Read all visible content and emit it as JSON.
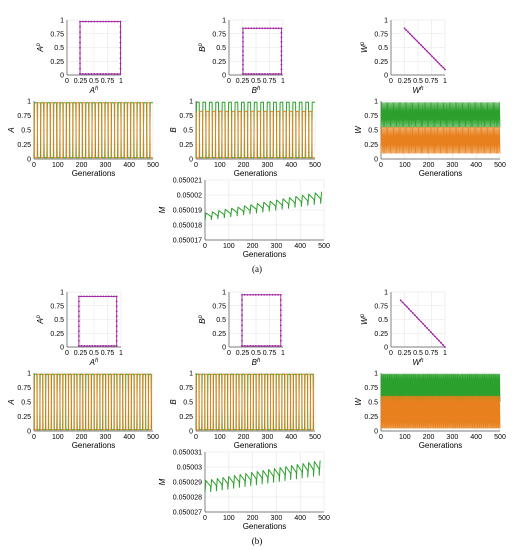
{
  "colors": {
    "green": "#2ca02c",
    "orange": "#e8811d",
    "purple": "#a020a0",
    "grid": "#e6e6e6",
    "axis": "#555555"
  },
  "panel_labels": [
    "(a)",
    "(b)"
  ],
  "chart_data": [
    {
      "id": "a-phase-A",
      "type": "scatter",
      "xlabel_main": "A",
      "xlabel_sup": "h",
      "ylabel_main": "A",
      "ylabel_sup": "p",
      "xlim": [
        0,
        1
      ],
      "ylim": [
        0,
        1
      ],
      "xticks": [
        "0",
        "0.25",
        "0.5",
        "0.75",
        "1"
      ],
      "yticks": [
        "0",
        "0.25",
        "0.5",
        "0.75",
        "1"
      ],
      "series": [
        {
          "color": "purple",
          "shape": "loop",
          "bounds": [
            0.24,
            0.99
          ],
          "low": 0.02,
          "high": 0.97
        }
      ]
    },
    {
      "id": "a-phase-B",
      "type": "scatter",
      "xlabel_main": "B",
      "xlabel_sup": "h",
      "ylabel_main": "B",
      "ylabel_sup": "p",
      "xlim": [
        0,
        1
      ],
      "ylim": [
        0,
        1
      ],
      "xticks": [
        "0",
        "0.25",
        "0.5",
        "0.75",
        "1"
      ],
      "yticks": [
        "0",
        "0.25",
        "0.5",
        "0.75",
        "1"
      ],
      "series": [
        {
          "color": "purple",
          "shape": "loop",
          "bounds": [
            0.26,
            0.97
          ],
          "low": 0.02,
          "high": 0.85
        }
      ]
    },
    {
      "id": "a-phase-W",
      "type": "scatter",
      "xlabel_main": "W",
      "xlabel_sup": "h",
      "ylabel_main": "W",
      "ylabel_sup": "p",
      "xlim": [
        0,
        1
      ],
      "ylim": [
        0,
        1
      ],
      "xticks": [
        "0",
        "0.25",
        "0.5",
        "0.75",
        "1"
      ],
      "yticks": [
        "0",
        "0.25",
        "0.5",
        "0.75",
        "1"
      ],
      "series": [
        {
          "color": "purple",
          "shape": "line",
          "from": [
            0.25,
            0.85
          ],
          "to": [
            1.0,
            0.1
          ]
        }
      ]
    },
    {
      "id": "a-time-A",
      "type": "line",
      "xlabel": "Generations",
      "ylabel": "A",
      "xlim": [
        0,
        500
      ],
      "ylim": [
        0,
        1
      ],
      "xticks": [
        "0",
        "100",
        "200",
        "300",
        "400",
        "500"
      ],
      "yticks": [
        "0",
        "0.25",
        "0.5",
        "0.75",
        "1"
      ],
      "series": [
        {
          "color": "green",
          "kind": "square",
          "period": 27,
          "low": 0.02,
          "high": 0.97
        },
        {
          "color": "orange",
          "kind": "square",
          "period": 27,
          "low": 0.02,
          "high": 0.97,
          "phase": 0.5
        }
      ]
    },
    {
      "id": "a-time-B",
      "type": "line",
      "xlabel": "Generations",
      "ylabel": "B",
      "xlim": [
        0,
        500
      ],
      "ylim": [
        0,
        1
      ],
      "xticks": [
        "0",
        "100",
        "200",
        "300",
        "400",
        "500"
      ],
      "yticks": [
        "0",
        "0.25",
        "0.5",
        "0.75",
        "1"
      ],
      "series": [
        {
          "color": "green",
          "kind": "square",
          "period": 27,
          "low": 0.02,
          "high": 0.98
        },
        {
          "color": "orange",
          "kind": "square",
          "period": 27,
          "low": 0.02,
          "high": 0.82,
          "phase": 0.5
        }
      ]
    },
    {
      "id": "a-time-W",
      "type": "line",
      "xlabel": "Generations",
      "ylabel": "W",
      "xlim": [
        0,
        500
      ],
      "ylim": [
        0,
        1
      ],
      "xticks": [
        "0",
        "100",
        "200",
        "300",
        "400",
        "500"
      ],
      "yticks": [
        "0",
        "0.25",
        "0.5",
        "0.75",
        "1"
      ],
      "series": [
        {
          "color": "green",
          "kind": "band",
          "period": 5,
          "low": 0.55,
          "high": 0.97
        },
        {
          "color": "orange",
          "kind": "band",
          "period": 5,
          "low": 0.1,
          "high": 0.55
        }
      ]
    },
    {
      "id": "a-time-M",
      "type": "line",
      "xlabel": "Generations",
      "ylabel": "M",
      "xlim": [
        0,
        500
      ],
      "ylim": [
        0.050017,
        0.050021
      ],
      "xticks": [
        "0",
        "100",
        "200",
        "300",
        "400",
        "500"
      ],
      "yticks": [
        "0.050017",
        "0.050018",
        "0.050019",
        "0.05002",
        "0.050021"
      ],
      "series": [
        {
          "color": "green",
          "kind": "saw",
          "period": 27,
          "start": [
            0.0500183,
            0.0500188
          ],
          "end": [
            0.0500195,
            0.0500203
          ]
        }
      ]
    },
    {
      "id": "b-phase-A",
      "type": "scatter",
      "xlabel_main": "A",
      "xlabel_sup": "h",
      "ylabel_main": "A",
      "ylabel_sup": "p",
      "xlim": [
        0,
        1
      ],
      "ylim": [
        0,
        1
      ],
      "xticks": [
        "0",
        "0.25",
        "0.5",
        "0.75",
        "1"
      ],
      "yticks": [
        "0",
        "0.25",
        "0.5",
        "0.75",
        "1"
      ],
      "series": [
        {
          "color": "purple",
          "shape": "loop",
          "bounds": [
            0.22,
            0.92
          ],
          "low": 0.02,
          "high": 0.92
        }
      ]
    },
    {
      "id": "b-phase-B",
      "type": "scatter",
      "xlabel_main": "B",
      "xlabel_sup": "h",
      "ylabel_main": "B",
      "ylabel_sup": "p",
      "xlim": [
        0,
        1
      ],
      "ylim": [
        0,
        1
      ],
      "xticks": [
        "0",
        "0.25",
        "0.5",
        "0.75",
        "1"
      ],
      "yticks": [
        "0",
        "0.25",
        "0.5",
        "0.75",
        "1"
      ],
      "series": [
        {
          "color": "purple",
          "shape": "loop",
          "bounds": [
            0.24,
            0.96
          ],
          "low": 0.02,
          "high": 0.95
        }
      ]
    },
    {
      "id": "b-phase-W",
      "type": "scatter",
      "xlabel_main": "W",
      "xlabel_sup": "h",
      "ylabel_main": "W",
      "ylabel_sup": "p",
      "xlim": [
        0,
        1
      ],
      "ylim": [
        0,
        1
      ],
      "xticks": [
        "0",
        "0.25",
        "0.5",
        "0.75",
        "1"
      ],
      "yticks": [
        "0",
        "0.25",
        "0.5",
        "0.75",
        "1"
      ],
      "series": [
        {
          "color": "purple",
          "shape": "line",
          "from": [
            0.18,
            0.85
          ],
          "to": [
            1.0,
            0.0
          ]
        }
      ]
    },
    {
      "id": "b-time-A",
      "type": "line",
      "xlabel": "Generations",
      "ylabel": "A",
      "xlim": [
        0,
        500
      ],
      "ylim": [
        0,
        1
      ],
      "xticks": [
        "0",
        "100",
        "200",
        "300",
        "400",
        "500"
      ],
      "yticks": [
        "0",
        "0.25",
        "0.5",
        "0.75",
        "1"
      ],
      "series": [
        {
          "color": "green",
          "kind": "square",
          "period": 24,
          "low": 0.02,
          "high": 0.98
        },
        {
          "color": "orange",
          "kind": "square",
          "period": 24,
          "low": 0.02,
          "high": 0.98,
          "phase": 0.5
        }
      ]
    },
    {
      "id": "b-time-B",
      "type": "line",
      "xlabel": "Generations",
      "ylabel": "B",
      "xlim": [
        0,
        500
      ],
      "ylim": [
        0,
        1
      ],
      "xticks": [
        "0",
        "100",
        "200",
        "300",
        "400",
        "500"
      ],
      "yticks": [
        "0",
        "0.25",
        "0.5",
        "0.75",
        "1"
      ],
      "series": [
        {
          "color": "green",
          "kind": "square",
          "period": 24,
          "low": 0.02,
          "high": 0.98
        },
        {
          "color": "orange",
          "kind": "square",
          "period": 24,
          "low": 0.02,
          "high": 0.98,
          "phase": 0.5
        }
      ]
    },
    {
      "id": "b-time-W",
      "type": "line",
      "xlabel": "Generations",
      "ylabel": "W",
      "xlim": [
        0,
        500
      ],
      "ylim": [
        0,
        1
      ],
      "xticks": [
        "0",
        "100",
        "200",
        "300",
        "400",
        "500"
      ],
      "yticks": [
        "0",
        "0.25",
        "0.5",
        "0.75",
        "1"
      ],
      "series": [
        {
          "color": "green",
          "kind": "band",
          "period": 4,
          "low": 0.5,
          "high": 0.98
        },
        {
          "color": "orange",
          "kind": "band",
          "period": 4,
          "low": 0.05,
          "high": 0.6
        }
      ]
    },
    {
      "id": "b-time-M",
      "type": "line",
      "xlabel": "Generations",
      "ylabel": "M",
      "xlim": [
        0,
        500
      ],
      "ylim": [
        0.050027,
        0.050031
      ],
      "xticks": [
        "0",
        "100",
        "200",
        "300",
        "400",
        "500"
      ],
      "yticks": [
        "0.050027",
        "0.050028",
        "0.050029",
        "0.05003",
        "0.050031"
      ],
      "series": [
        {
          "color": "green",
          "kind": "saw",
          "period": 24,
          "start": [
            0.0500283,
            0.0500291
          ],
          "end": [
            0.0500295,
            0.0500305
          ]
        }
      ]
    }
  ]
}
